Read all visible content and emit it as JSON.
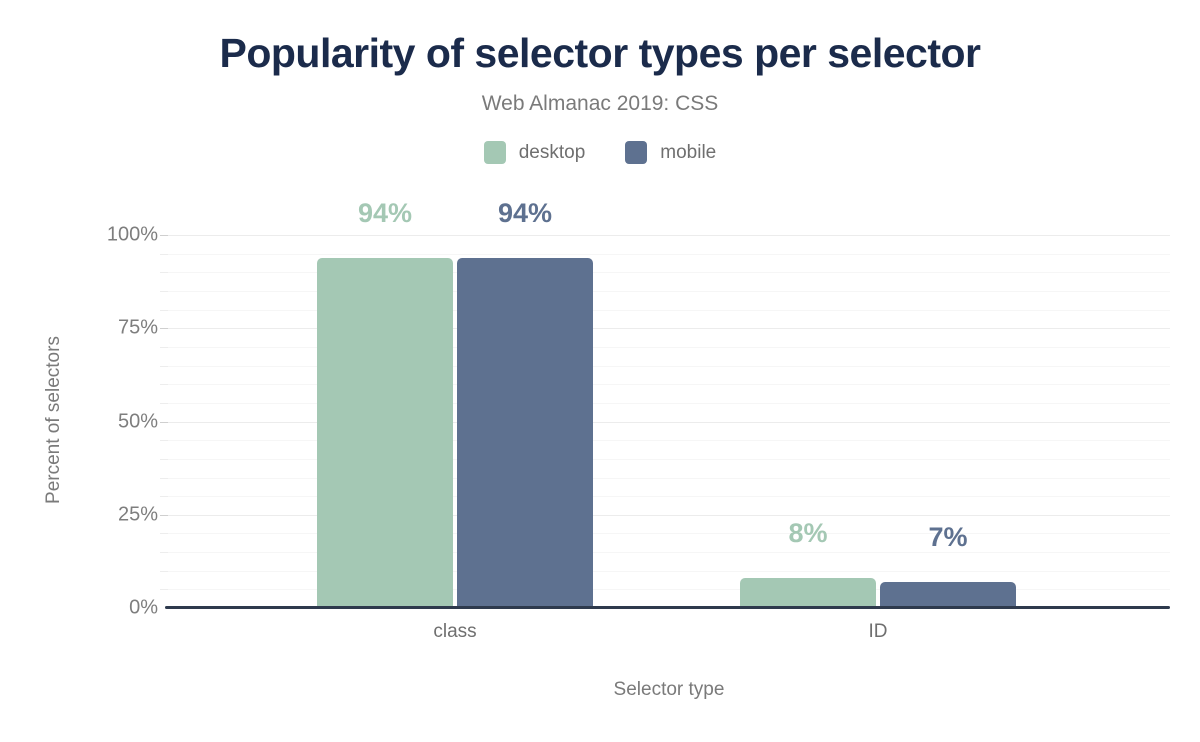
{
  "chart_data": {
    "type": "bar",
    "title": "Popularity of selector types per selector",
    "subtitle": "Web Almanac 2019: CSS",
    "categories": [
      "class",
      "ID"
    ],
    "series": [
      {
        "name": "desktop",
        "color": "#a4c8b4",
        "values": [
          94,
          8
        ]
      },
      {
        "name": "mobile",
        "color": "#5e7190",
        "values": [
          94,
          7
        ]
      }
    ],
    "value_labels": [
      [
        "94%",
        "8%"
      ],
      [
        "94%",
        "7%"
      ]
    ],
    "xlabel": "Selector type",
    "ylabel": "Percent of selectors",
    "ylim": [
      0,
      100
    ],
    "yticks": [
      "0%",
      "25%",
      "50%",
      "75%",
      "100%"
    ],
    "ytick_values": [
      0,
      25,
      50,
      75,
      100
    ],
    "minor_grid_step": 5,
    "grid": "horizontal",
    "legend_position": "top-center",
    "colors": {
      "title": "#1b2b4b",
      "subtitle": "#7a7a7a",
      "axis_text": "#7e7e7e",
      "axis_line": "#2e3a4d",
      "major_grid": "#ececec",
      "minor_grid": "#f6f6f6",
      "background": "#ffffff"
    }
  }
}
